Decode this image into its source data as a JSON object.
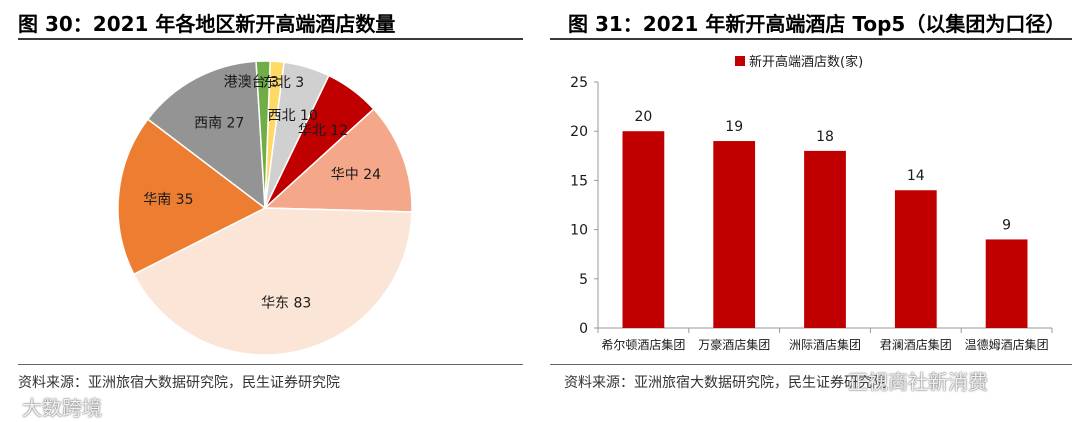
{
  "charts": [
    {
      "title": "图 30：2021 年各地区新开高端酒店数量",
      "source": "资料来源：亚洲旅宿大数据研究院，民生证券研究院"
    },
    {
      "title": "图 31：2021 年新开高端酒店 Top5（以集团为口径）",
      "source": "资料来源：亚洲旅宿大数据研究院，民生证券研究院"
    }
  ],
  "chart_data": [
    {
      "type": "pie",
      "title": "图 30：2021 年各地区新开高端酒店数量",
      "slices": [
        {
          "label": "东北",
          "value": 3,
          "color": "#ffd966"
        },
        {
          "label": "西北",
          "value": 10,
          "color": "#d0d0d0"
        },
        {
          "label": "华北",
          "value": 12,
          "color": "#c00000"
        },
        {
          "label": "华中",
          "value": 24,
          "color": "#f4a889"
        },
        {
          "label": "华东",
          "value": 83,
          "color": "#fbe5d6"
        },
        {
          "label": "华南",
          "value": 35,
          "color": "#ed7d31"
        },
        {
          "label": "西南",
          "value": 27,
          "color": "#949494"
        },
        {
          "label": "港澳台",
          "value": 3,
          "color": "#70ad47"
        }
      ]
    },
    {
      "type": "bar",
      "title": "图 31：2021 年新开高端酒店 Top5（以集团为口径）",
      "categories": [
        "希尔顿酒店集团",
        "万豪酒店集团",
        "洲际酒店集团",
        "君澜酒店集团",
        "温德姆酒店集团"
      ],
      "series": [
        {
          "name": "新开高端酒店数(家)",
          "values": [
            20,
            19,
            18,
            14,
            9
          ],
          "color": "#c00000"
        }
      ],
      "ylim": [
        0,
        25
      ],
      "yticks": [
        0,
        5,
        10,
        15,
        20,
        25
      ],
      "legend_position": "top"
    }
  ],
  "watermarks": [
    {
      "text": "大数跨境"
    },
    {
      "text": "正视商社新消费"
    }
  ]
}
